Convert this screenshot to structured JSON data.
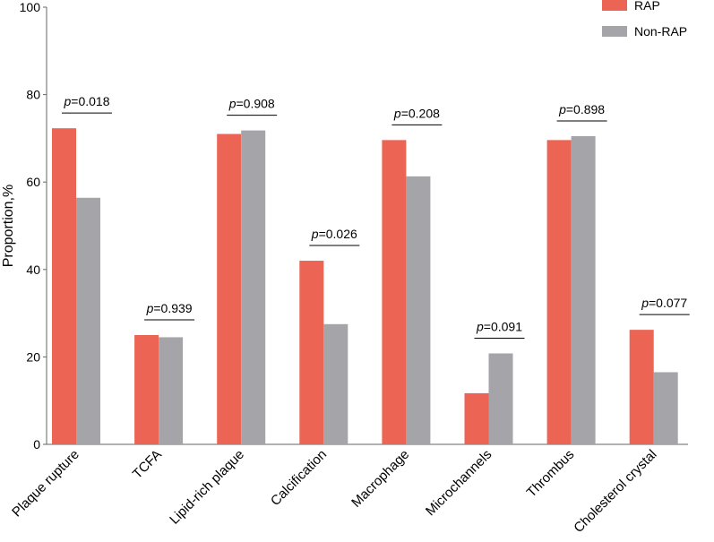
{
  "chart_data": {
    "type": "bar",
    "title": "",
    "xlabel": "",
    "ylabel": "Proportion,%",
    "ylim": [
      0,
      100
    ],
    "yticks": [
      0,
      20,
      40,
      60,
      80,
      100
    ],
    "grid": false,
    "legend_position": "top-right",
    "categories": [
      "Plaque rupture",
      "TCFA",
      "Lipid-rich plaque",
      "Calcification",
      "Macrophage",
      "Microchannels",
      "Thrombus",
      "Cholesterol crystal"
    ],
    "series": [
      {
        "name": "RAP",
        "color": "#EC6454",
        "values": [
          72.3,
          25.0,
          71.0,
          42.0,
          69.6,
          11.7,
          69.6,
          26.2
        ]
      },
      {
        "name": "Non-RAP",
        "color": "#A5A4A9",
        "values": [
          56.4,
          24.5,
          71.8,
          27.5,
          61.3,
          20.8,
          70.5,
          16.5
        ]
      }
    ],
    "annotations": [
      {
        "category": "Plaque rupture",
        "p_prefix": "p",
        "p_value": "=0.018"
      },
      {
        "category": "TCFA",
        "p_prefix": "p",
        "p_value": "=0.939"
      },
      {
        "category": "Lipid-rich plaque",
        "p_prefix": "p",
        "p_value": "=0.908"
      },
      {
        "category": "Calcification",
        "p_prefix": "p",
        "p_value": "=0.026"
      },
      {
        "category": "Macrophage",
        "p_prefix": "p",
        "p_value": "=0.208"
      },
      {
        "category": "Microchannels",
        "p_prefix": "p",
        "p_value": "=0.091"
      },
      {
        "category": "Thrombus",
        "p_prefix": "p",
        "p_value": "=0.898"
      },
      {
        "category": "Cholesterol crystal",
        "p_prefix": "p",
        "p_value": "=0.077"
      }
    ]
  }
}
